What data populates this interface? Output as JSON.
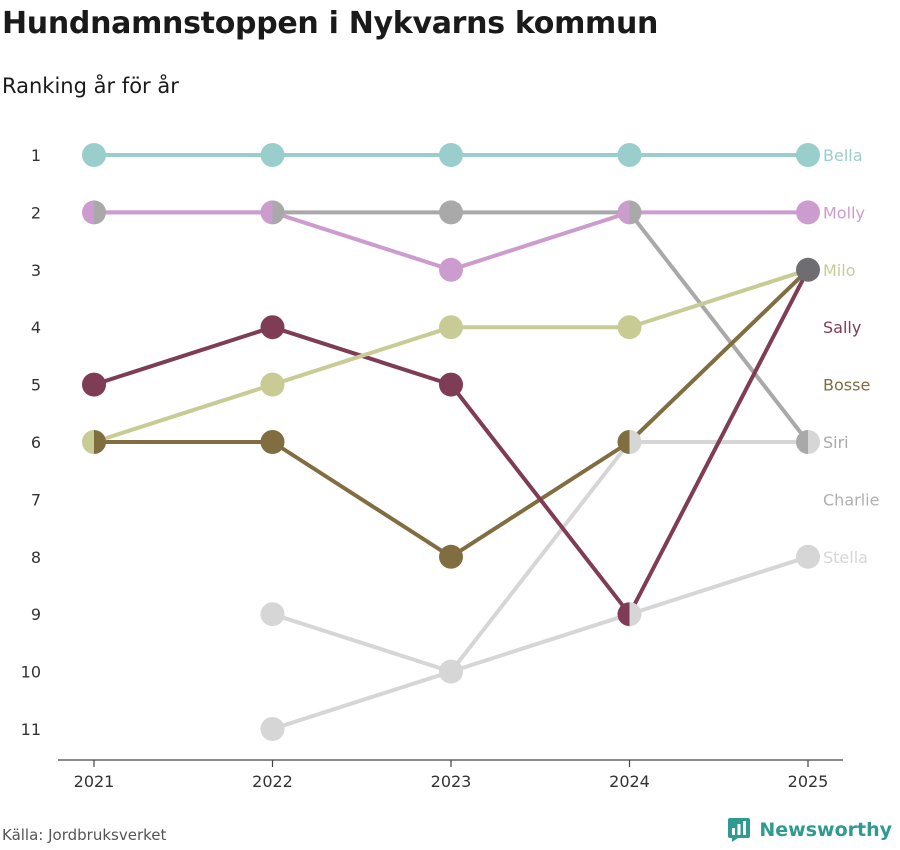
{
  "title": "Hundnamnstoppen i Nykvarns kommun",
  "subtitle": "Ranking år för år",
  "source": "Källa: Jordbruksverket",
  "brand": "Newsworthy",
  "colors": {
    "brand": "#2f9a90",
    "axis": "#444444",
    "tick_text": "#333333"
  },
  "chart_data": {
    "type": "line",
    "x": [
      "2021",
      "2022",
      "2023",
      "2024",
      "2025"
    ],
    "y_ticks": [
      1,
      2,
      3,
      4,
      5,
      6,
      7,
      8,
      9,
      10,
      11
    ],
    "ylim": [
      1,
      11
    ],
    "y_inverted": true,
    "grid": false,
    "series": [
      {
        "name": "Bella",
        "color": "#9acecc",
        "values": [
          1,
          1,
          1,
          1,
          1
        ],
        "label_rank": 1
      },
      {
        "name": "Molly",
        "color": "#cc9ccf",
        "values": [
          2,
          2,
          3,
          2,
          2
        ],
        "label_rank": 2
      },
      {
        "name": "Milo",
        "color": "#c9cb95",
        "values": [
          6,
          5,
          4,
          4,
          3
        ],
        "label_rank": 3
      },
      {
        "name": "Sally",
        "color": "#7f3c55",
        "values": [
          5,
          4,
          5,
          9,
          3
        ],
        "label_rank": 4
      },
      {
        "name": "Bosse",
        "color": "#806e40",
        "values": [
          6,
          6,
          8,
          6,
          3
        ],
        "label_rank": 5
      },
      {
        "name": "Siri",
        "color": "#a9a9a9",
        "values": [
          2,
          2,
          2,
          2,
          6
        ],
        "label_rank": 6
      },
      {
        "name": "Charlie",
        "color": "#d6d6d6",
        "values": [
          null,
          11,
          10,
          6,
          6
        ],
        "label_rank": 7,
        "label_color": "#b0b0b0"
      },
      {
        "name": "Stella",
        "color": "#d6d6d6",
        "values": [
          null,
          9,
          10,
          9,
          8
        ],
        "label_rank": 8
      }
    ],
    "final_point_color": "#6e6e72"
  }
}
